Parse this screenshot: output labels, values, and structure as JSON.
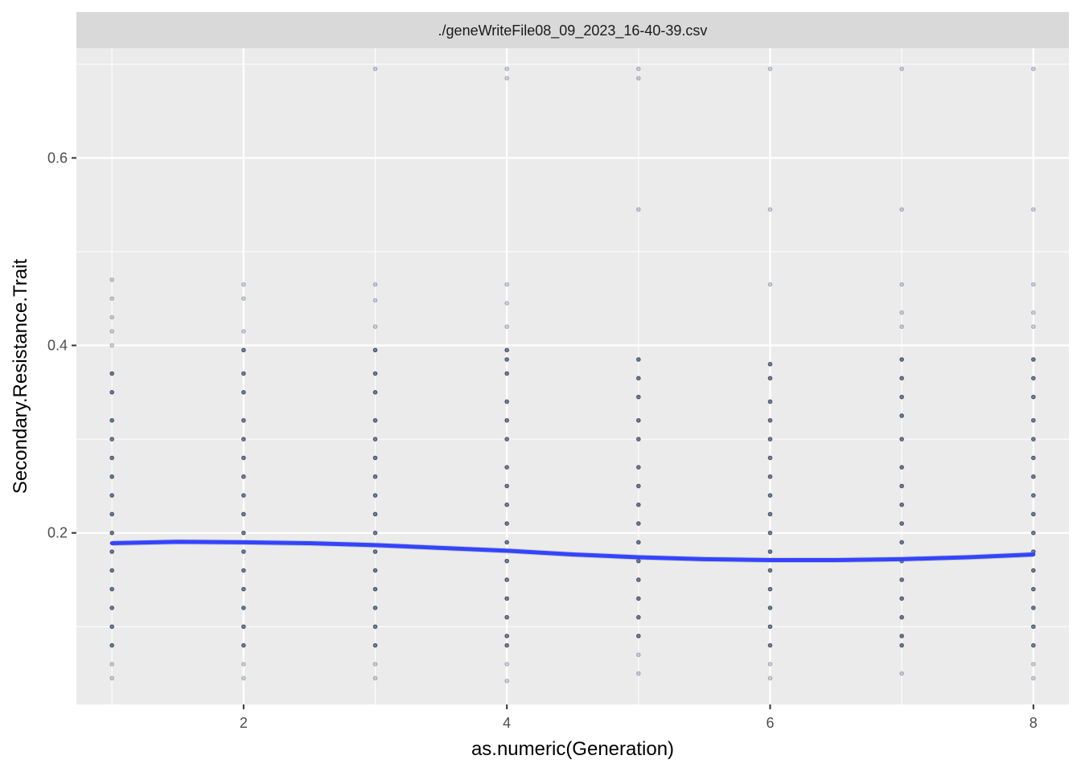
{
  "chart_data": {
    "type": "scatter",
    "facet_title": "./geneWriteFile08_09_2023_16-40-39.csv",
    "xlabel": "as.numeric(Generation)",
    "ylabel": "Secondary.Resistance.Trait",
    "xlim": [
      0.73,
      8.27
    ],
    "ylim": [
      0.017,
      0.717
    ],
    "x_ticks": [
      2,
      4,
      6,
      8
    ],
    "x_tick_labels": [
      "2",
      "4",
      "6",
      "8"
    ],
    "y_ticks": [
      0.2,
      0.4,
      0.6
    ],
    "y_tick_labels": [
      "0.2",
      "0.4",
      "0.6"
    ],
    "grid": true,
    "point_color": "#1c2d4f",
    "smooth_color": "#3344ff",
    "series": [
      {
        "values": [
          {
            "x": 1,
            "y": 0.045
          },
          {
            "x": 1,
            "y": 0.06
          },
          {
            "x": 1,
            "y": 0.08
          },
          {
            "x": 1,
            "y": 0.1
          },
          {
            "x": 1,
            "y": 0.12
          },
          {
            "x": 1,
            "y": 0.14
          },
          {
            "x": 1,
            "y": 0.16
          },
          {
            "x": 1,
            "y": 0.18
          },
          {
            "x": 1,
            "y": 0.2
          },
          {
            "x": 1,
            "y": 0.22
          },
          {
            "x": 1,
            "y": 0.24
          },
          {
            "x": 1,
            "y": 0.26
          },
          {
            "x": 1,
            "y": 0.28
          },
          {
            "x": 1,
            "y": 0.3
          },
          {
            "x": 1,
            "y": 0.32
          },
          {
            "x": 1,
            "y": 0.35
          },
          {
            "x": 1,
            "y": 0.37
          },
          {
            "x": 1,
            "y": 0.4
          },
          {
            "x": 1,
            "y": 0.415
          },
          {
            "x": 1,
            "y": 0.43
          },
          {
            "x": 1,
            "y": 0.45
          },
          {
            "x": 1,
            "y": 0.47
          },
          {
            "x": 2,
            "y": 0.045
          },
          {
            "x": 2,
            "y": 0.06
          },
          {
            "x": 2,
            "y": 0.08
          },
          {
            "x": 2,
            "y": 0.1
          },
          {
            "x": 2,
            "y": 0.12
          },
          {
            "x": 2,
            "y": 0.14
          },
          {
            "x": 2,
            "y": 0.16
          },
          {
            "x": 2,
            "y": 0.18
          },
          {
            "x": 2,
            "y": 0.2
          },
          {
            "x": 2,
            "y": 0.22
          },
          {
            "x": 2,
            "y": 0.24
          },
          {
            "x": 2,
            "y": 0.26
          },
          {
            "x": 2,
            "y": 0.28
          },
          {
            "x": 2,
            "y": 0.3
          },
          {
            "x": 2,
            "y": 0.32
          },
          {
            "x": 2,
            "y": 0.35
          },
          {
            "x": 2,
            "y": 0.37
          },
          {
            "x": 2,
            "y": 0.395
          },
          {
            "x": 2,
            "y": 0.415
          },
          {
            "x": 2,
            "y": 0.45
          },
          {
            "x": 2,
            "y": 0.465
          },
          {
            "x": 3,
            "y": 0.045
          },
          {
            "x": 3,
            "y": 0.06
          },
          {
            "x": 3,
            "y": 0.08
          },
          {
            "x": 3,
            "y": 0.1
          },
          {
            "x": 3,
            "y": 0.12
          },
          {
            "x": 3,
            "y": 0.14
          },
          {
            "x": 3,
            "y": 0.16
          },
          {
            "x": 3,
            "y": 0.18
          },
          {
            "x": 3,
            "y": 0.2
          },
          {
            "x": 3,
            "y": 0.22
          },
          {
            "x": 3,
            "y": 0.24
          },
          {
            "x": 3,
            "y": 0.26
          },
          {
            "x": 3,
            "y": 0.28
          },
          {
            "x": 3,
            "y": 0.3
          },
          {
            "x": 3,
            "y": 0.32
          },
          {
            "x": 3,
            "y": 0.35
          },
          {
            "x": 3,
            "y": 0.37
          },
          {
            "x": 3,
            "y": 0.395
          },
          {
            "x": 3,
            "y": 0.42
          },
          {
            "x": 3,
            "y": 0.448
          },
          {
            "x": 3,
            "y": 0.465
          },
          {
            "x": 3,
            "y": 0.695
          },
          {
            "x": 4,
            "y": 0.042
          },
          {
            "x": 4,
            "y": 0.06
          },
          {
            "x": 4,
            "y": 0.08
          },
          {
            "x": 4,
            "y": 0.09
          },
          {
            "x": 4,
            "y": 0.11
          },
          {
            "x": 4,
            "y": 0.13
          },
          {
            "x": 4,
            "y": 0.15
          },
          {
            "x": 4,
            "y": 0.17
          },
          {
            "x": 4,
            "y": 0.19
          },
          {
            "x": 4,
            "y": 0.21
          },
          {
            "x": 4,
            "y": 0.23
          },
          {
            "x": 4,
            "y": 0.25
          },
          {
            "x": 4,
            "y": 0.27
          },
          {
            "x": 4,
            "y": 0.3
          },
          {
            "x": 4,
            "y": 0.32
          },
          {
            "x": 4,
            "y": 0.34
          },
          {
            "x": 4,
            "y": 0.37
          },
          {
            "x": 4,
            "y": 0.385
          },
          {
            "x": 4,
            "y": 0.395
          },
          {
            "x": 4,
            "y": 0.42
          },
          {
            "x": 4,
            "y": 0.445
          },
          {
            "x": 4,
            "y": 0.465
          },
          {
            "x": 4,
            "y": 0.685
          },
          {
            "x": 4,
            "y": 0.695
          },
          {
            "x": 5,
            "y": 0.05
          },
          {
            "x": 5,
            "y": 0.07
          },
          {
            "x": 5,
            "y": 0.09
          },
          {
            "x": 5,
            "y": 0.11
          },
          {
            "x": 5,
            "y": 0.13
          },
          {
            "x": 5,
            "y": 0.15
          },
          {
            "x": 5,
            "y": 0.17
          },
          {
            "x": 5,
            "y": 0.19
          },
          {
            "x": 5,
            "y": 0.21
          },
          {
            "x": 5,
            "y": 0.23
          },
          {
            "x": 5,
            "y": 0.25
          },
          {
            "x": 5,
            "y": 0.27
          },
          {
            "x": 5,
            "y": 0.3
          },
          {
            "x": 5,
            "y": 0.32
          },
          {
            "x": 5,
            "y": 0.345
          },
          {
            "x": 5,
            "y": 0.365
          },
          {
            "x": 5,
            "y": 0.385
          },
          {
            "x": 5,
            "y": 0.545
          },
          {
            "x": 5,
            "y": 0.685
          },
          {
            "x": 5,
            "y": 0.695
          },
          {
            "x": 6,
            "y": 0.045
          },
          {
            "x": 6,
            "y": 0.06
          },
          {
            "x": 6,
            "y": 0.08
          },
          {
            "x": 6,
            "y": 0.1
          },
          {
            "x": 6,
            "y": 0.12
          },
          {
            "x": 6,
            "y": 0.14
          },
          {
            "x": 6,
            "y": 0.16
          },
          {
            "x": 6,
            "y": 0.18
          },
          {
            "x": 6,
            "y": 0.2
          },
          {
            "x": 6,
            "y": 0.22
          },
          {
            "x": 6,
            "y": 0.24
          },
          {
            "x": 6,
            "y": 0.26
          },
          {
            "x": 6,
            "y": 0.28
          },
          {
            "x": 6,
            "y": 0.3
          },
          {
            "x": 6,
            "y": 0.32
          },
          {
            "x": 6,
            "y": 0.34
          },
          {
            "x": 6,
            "y": 0.365
          },
          {
            "x": 6,
            "y": 0.38
          },
          {
            "x": 6,
            "y": 0.465
          },
          {
            "x": 6,
            "y": 0.545
          },
          {
            "x": 6,
            "y": 0.695
          },
          {
            "x": 7,
            "y": 0.05
          },
          {
            "x": 7,
            "y": 0.08
          },
          {
            "x": 7,
            "y": 0.09
          },
          {
            "x": 7,
            "y": 0.11
          },
          {
            "x": 7,
            "y": 0.13
          },
          {
            "x": 7,
            "y": 0.15
          },
          {
            "x": 7,
            "y": 0.17
          },
          {
            "x": 7,
            "y": 0.19
          },
          {
            "x": 7,
            "y": 0.21
          },
          {
            "x": 7,
            "y": 0.23
          },
          {
            "x": 7,
            "y": 0.25
          },
          {
            "x": 7,
            "y": 0.27
          },
          {
            "x": 7,
            "y": 0.3
          },
          {
            "x": 7,
            "y": 0.325
          },
          {
            "x": 7,
            "y": 0.345
          },
          {
            "x": 7,
            "y": 0.365
          },
          {
            "x": 7,
            "y": 0.385
          },
          {
            "x": 7,
            "y": 0.42
          },
          {
            "x": 7,
            "y": 0.435
          },
          {
            "x": 7,
            "y": 0.465
          },
          {
            "x": 7,
            "y": 0.545
          },
          {
            "x": 7,
            "y": 0.695
          },
          {
            "x": 8,
            "y": 0.045
          },
          {
            "x": 8,
            "y": 0.06
          },
          {
            "x": 8,
            "y": 0.08
          },
          {
            "x": 8,
            "y": 0.1
          },
          {
            "x": 8,
            "y": 0.12
          },
          {
            "x": 8,
            "y": 0.14
          },
          {
            "x": 8,
            "y": 0.16
          },
          {
            "x": 8,
            "y": 0.18
          },
          {
            "x": 8,
            "y": 0.2
          },
          {
            "x": 8,
            "y": 0.22
          },
          {
            "x": 8,
            "y": 0.24
          },
          {
            "x": 8,
            "y": 0.26
          },
          {
            "x": 8,
            "y": 0.28
          },
          {
            "x": 8,
            "y": 0.3
          },
          {
            "x": 8,
            "y": 0.32
          },
          {
            "x": 8,
            "y": 0.345
          },
          {
            "x": 8,
            "y": 0.365
          },
          {
            "x": 8,
            "y": 0.385
          },
          {
            "x": 8,
            "y": 0.42
          },
          {
            "x": 8,
            "y": 0.435
          },
          {
            "x": 8,
            "y": 0.465
          },
          {
            "x": 8,
            "y": 0.545
          },
          {
            "x": 8,
            "y": 0.695
          }
        ]
      }
    ],
    "smooth": {
      "x": [
        1,
        1.5,
        2,
        2.5,
        3,
        3.5,
        4,
        4.5,
        5,
        5.5,
        6,
        6.5,
        7,
        7.5,
        8
      ],
      "y": [
        0.189,
        0.1905,
        0.19,
        0.189,
        0.187,
        0.184,
        0.181,
        0.177,
        0.174,
        0.172,
        0.171,
        0.171,
        0.172,
        0.174,
        0.177
      ]
    }
  }
}
